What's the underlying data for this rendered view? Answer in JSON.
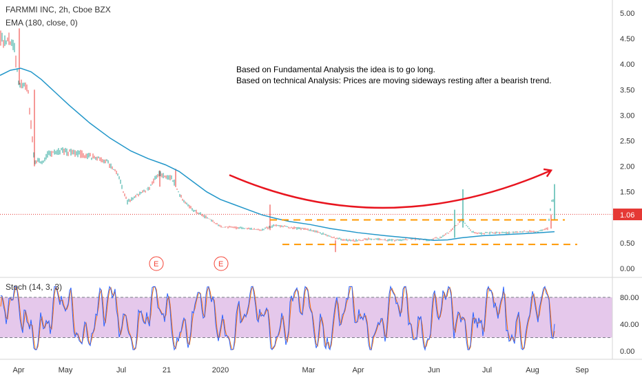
{
  "chart_data": {
    "type": "candlestick",
    "symbol_legend": "FARMMI INC, 2h, Cboe BZX",
    "indicator_legend": "EMA (180, close, 0)",
    "annotation_lines": [
      "Based on Fundamental Analysis the idea is to go long.",
      "Based on technical Analysis: Prices are moving sideways resting after a bearish trend."
    ],
    "last_price": {
      "label": "1.06",
      "value": 1.06,
      "color": "#e53935"
    },
    "y_axis": {
      "ticks": [
        "5.00",
        "4.50",
        "4.00",
        "3.50",
        "3.00",
        "2.50",
        "2.00",
        "1.50",
        "1.00",
        "0.50",
        "0.00"
      ],
      "range": [
        -0.1,
        5.2
      ]
    },
    "x_axis": {
      "ticks": [
        "Apr",
        "May",
        "Jul",
        "21",
        "2020",
        "Mar",
        "Apr",
        "Jun",
        "Jul",
        "Aug",
        "Sep"
      ]
    },
    "earnings_markers": [
      "E",
      "E"
    ],
    "price_path": [
      [
        0,
        4.5
      ],
      [
        10,
        4.45
      ],
      [
        20,
        4.4
      ],
      [
        28,
        3.6
      ],
      [
        40,
        3.55
      ],
      [
        50,
        2.1
      ],
      [
        60,
        2.1
      ],
      [
        70,
        2.25
      ],
      [
        90,
        2.3
      ],
      [
        110,
        2.25
      ],
      [
        130,
        2.2
      ],
      [
        155,
        2.1
      ],
      [
        170,
        1.85
      ],
      [
        185,
        1.3
      ],
      [
        200,
        1.45
      ],
      [
        215,
        1.55
      ],
      [
        230,
        1.85
      ],
      [
        250,
        1.75
      ],
      [
        265,
        1.35
      ],
      [
        280,
        1.15
      ],
      [
        300,
        1.0
      ],
      [
        320,
        0.82
      ],
      [
        340,
        0.8
      ],
      [
        360,
        0.78
      ],
      [
        380,
        0.75
      ],
      [
        400,
        0.85
      ],
      [
        420,
        0.8
      ],
      [
        440,
        0.78
      ],
      [
        460,
        0.72
      ],
      [
        480,
        0.62
      ],
      [
        500,
        0.55
      ],
      [
        520,
        0.55
      ],
      [
        540,
        0.58
      ],
      [
        560,
        0.56
      ],
      [
        580,
        0.55
      ],
      [
        600,
        0.58
      ],
      [
        620,
        0.56
      ],
      [
        640,
        0.6
      ],
      [
        655,
        0.75
      ],
      [
        670,
        0.95
      ],
      [
        685,
        0.72
      ],
      [
        700,
        0.68
      ],
      [
        720,
        0.7
      ],
      [
        740,
        0.7
      ],
      [
        760,
        0.72
      ],
      [
        780,
        0.72
      ],
      [
        795,
        0.78
      ],
      [
        802,
        1.4
      ],
      [
        806,
        1.06
      ]
    ],
    "price_spikes": [
      [
        28,
        3.6,
        4.7
      ],
      [
        50,
        2.0,
        3.5
      ],
      [
        232,
        1.6,
        1.92
      ],
      [
        255,
        1.6,
        1.95
      ],
      [
        392,
        0.75,
        1.25
      ],
      [
        487,
        0.32,
        0.55
      ],
      [
        660,
        0.6,
        1.15
      ],
      [
        672,
        0.8,
        1.55
      ],
      [
        800,
        0.78,
        1.05
      ],
      [
        805,
        0.95,
        1.65
      ]
    ],
    "ema": [
      [
        0,
        3.78
      ],
      [
        15,
        3.88
      ],
      [
        30,
        3.92
      ],
      [
        45,
        3.85
      ],
      [
        60,
        3.7
      ],
      [
        80,
        3.45
      ],
      [
        100,
        3.2
      ],
      [
        130,
        2.85
      ],
      [
        160,
        2.55
      ],
      [
        190,
        2.3
      ],
      [
        215,
        2.15
      ],
      [
        240,
        2.03
      ],
      [
        260,
        1.9
      ],
      [
        280,
        1.7
      ],
      [
        300,
        1.5
      ],
      [
        320,
        1.35
      ],
      [
        340,
        1.25
      ],
      [
        360,
        1.15
      ],
      [
        380,
        1.05
      ],
      [
        400,
        0.98
      ],
      [
        420,
        0.92
      ],
      [
        450,
        0.86
      ],
      [
        480,
        0.78
      ],
      [
        520,
        0.7
      ],
      [
        560,
        0.64
      ],
      [
        600,
        0.59
      ],
      [
        630,
        0.55
      ],
      [
        650,
        0.56
      ],
      [
        670,
        0.6
      ],
      [
        700,
        0.64
      ],
      [
        730,
        0.66
      ],
      [
        760,
        0.68
      ],
      [
        785,
        0.7
      ],
      [
        805,
        0.72
      ]
    ],
    "support_line": {
      "y": 0.47,
      "x_start": 410,
      "x_end": 838,
      "color": "#ff9800"
    },
    "resistance_line": {
      "y": 0.95,
      "x_start": 392,
      "x_end": 820,
      "color": "#ff9800"
    },
    "curve_arrow": {
      "color": "#e8151f",
      "start": [
        333,
        1.83
      ],
      "control": [
        560,
        0.5
      ],
      "end": [
        800,
        1.92
      ]
    },
    "stoch": {
      "legend": "Stoch (14, 3, 3)",
      "ticks": [
        "80.00",
        "40.00",
        "0.00"
      ],
      "upper": 80,
      "lower": 20,
      "fill": "#e1bee7",
      "k_color": "#2962ff",
      "d_color": "#ff6d00"
    }
  }
}
